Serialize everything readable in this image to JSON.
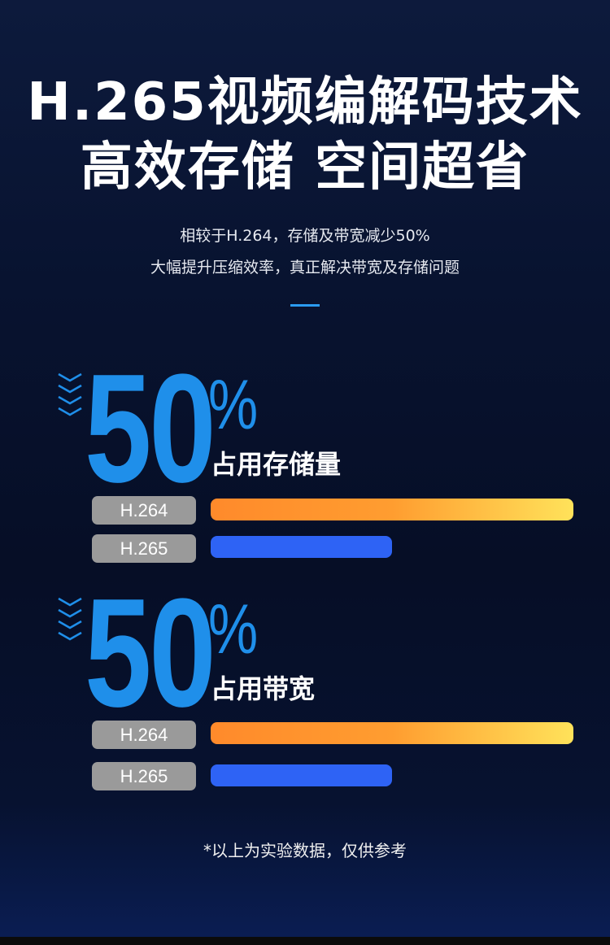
{
  "headline": {
    "line1": "H.265视频编解码技术",
    "line2": "高效存储  空间超省"
  },
  "subtitle": {
    "line1": "相较于H.264，存储及带宽减少50%",
    "line2": "大幅提升压缩效率，真正解决带宽及存储问题"
  },
  "colors": {
    "accent": "#1f8fea",
    "h264_bar_start": "#ff8a2b",
    "h264_bar_end": "#ffe25a",
    "h265_bar": "#2e63f5",
    "pill": "#9a9a9a"
  },
  "sections": [
    {
      "value": "50",
      "unit": "%",
      "label": "占用存储量",
      "icon": "chevrons-down-icon",
      "bars": [
        {
          "name": "H.264",
          "relative": 100
        },
        {
          "name": "H.265",
          "relative": 50
        }
      ]
    },
    {
      "value": "50",
      "unit": "%",
      "label": "占用带宽",
      "icon": "chevrons-down-icon",
      "bars": [
        {
          "name": "H.264",
          "relative": 100
        },
        {
          "name": "H.265",
          "relative": 50
        }
      ]
    }
  ],
  "footnote": "*以上为实验数据，仅供参考"
}
